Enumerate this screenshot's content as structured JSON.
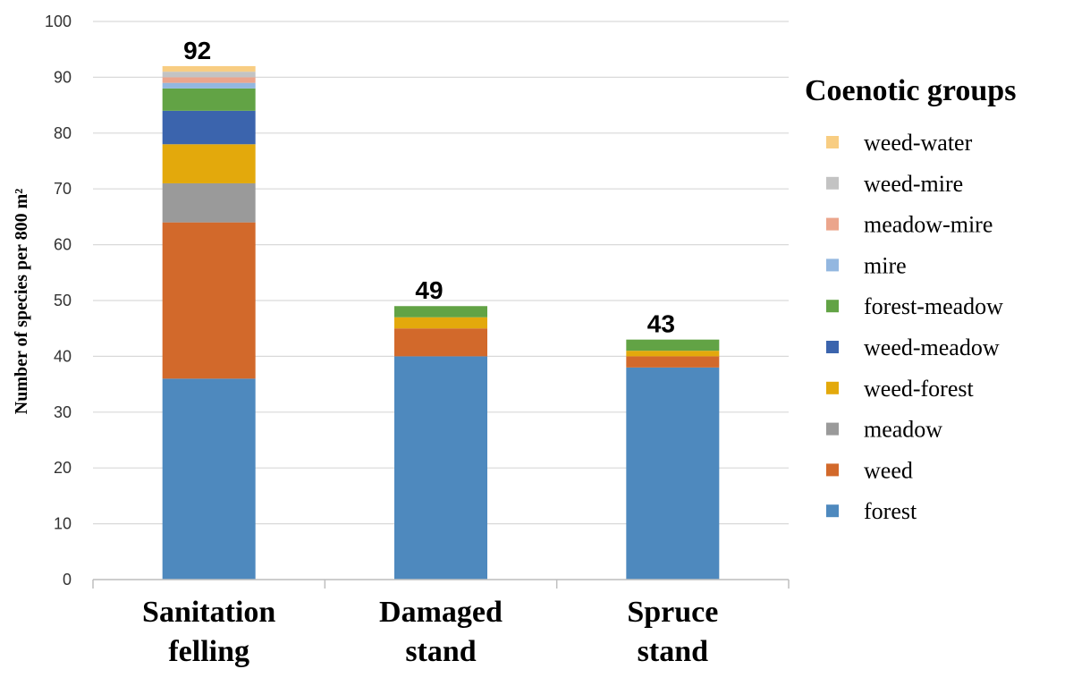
{
  "chart_data": {
    "type": "bar",
    "stacked": true,
    "categories": [
      [
        "Sanitation",
        "felling"
      ],
      [
        "Damaged",
        "stand"
      ],
      [
        "Spruce",
        "stand"
      ]
    ],
    "totals": [
      92,
      49,
      43
    ],
    "ylabel": "Number  of species per 800 m²",
    "ylim": [
      0,
      100
    ],
    "yticks": [
      0,
      10,
      20,
      30,
      40,
      50,
      60,
      70,
      80,
      90,
      100
    ],
    "grid": true,
    "legend_title": "Coenotic groups",
    "legend_position": "right",
    "series": [
      {
        "name": "forest",
        "color": "#4e89be",
        "values": [
          36,
          40,
          38
        ]
      },
      {
        "name": "weed",
        "color": "#d2692b",
        "values": [
          28,
          5,
          2
        ]
      },
      {
        "name": "meadow",
        "color": "#9a9a9a",
        "values": [
          7,
          0,
          0
        ]
      },
      {
        "name": "weed-forest",
        "color": "#e3a90c",
        "values": [
          7,
          2,
          1
        ]
      },
      {
        "name": "weed-meadow",
        "color": "#3b64ad",
        "values": [
          6,
          0,
          0
        ]
      },
      {
        "name": "forest-meadow",
        "color": "#62a345",
        "values": [
          4,
          2,
          2
        ]
      },
      {
        "name": "mire",
        "color": "#93b7e0",
        "values": [
          1,
          0,
          0
        ]
      },
      {
        "name": "meadow-mire",
        "color": "#eba58c",
        "values": [
          1,
          0,
          0
        ]
      },
      {
        "name": "weed-mire",
        "color": "#c3c3c3",
        "values": [
          1,
          0,
          0
        ]
      },
      {
        "name": "weed-water",
        "color": "#f8cd82",
        "values": [
          1,
          0,
          0
        ]
      }
    ]
  }
}
